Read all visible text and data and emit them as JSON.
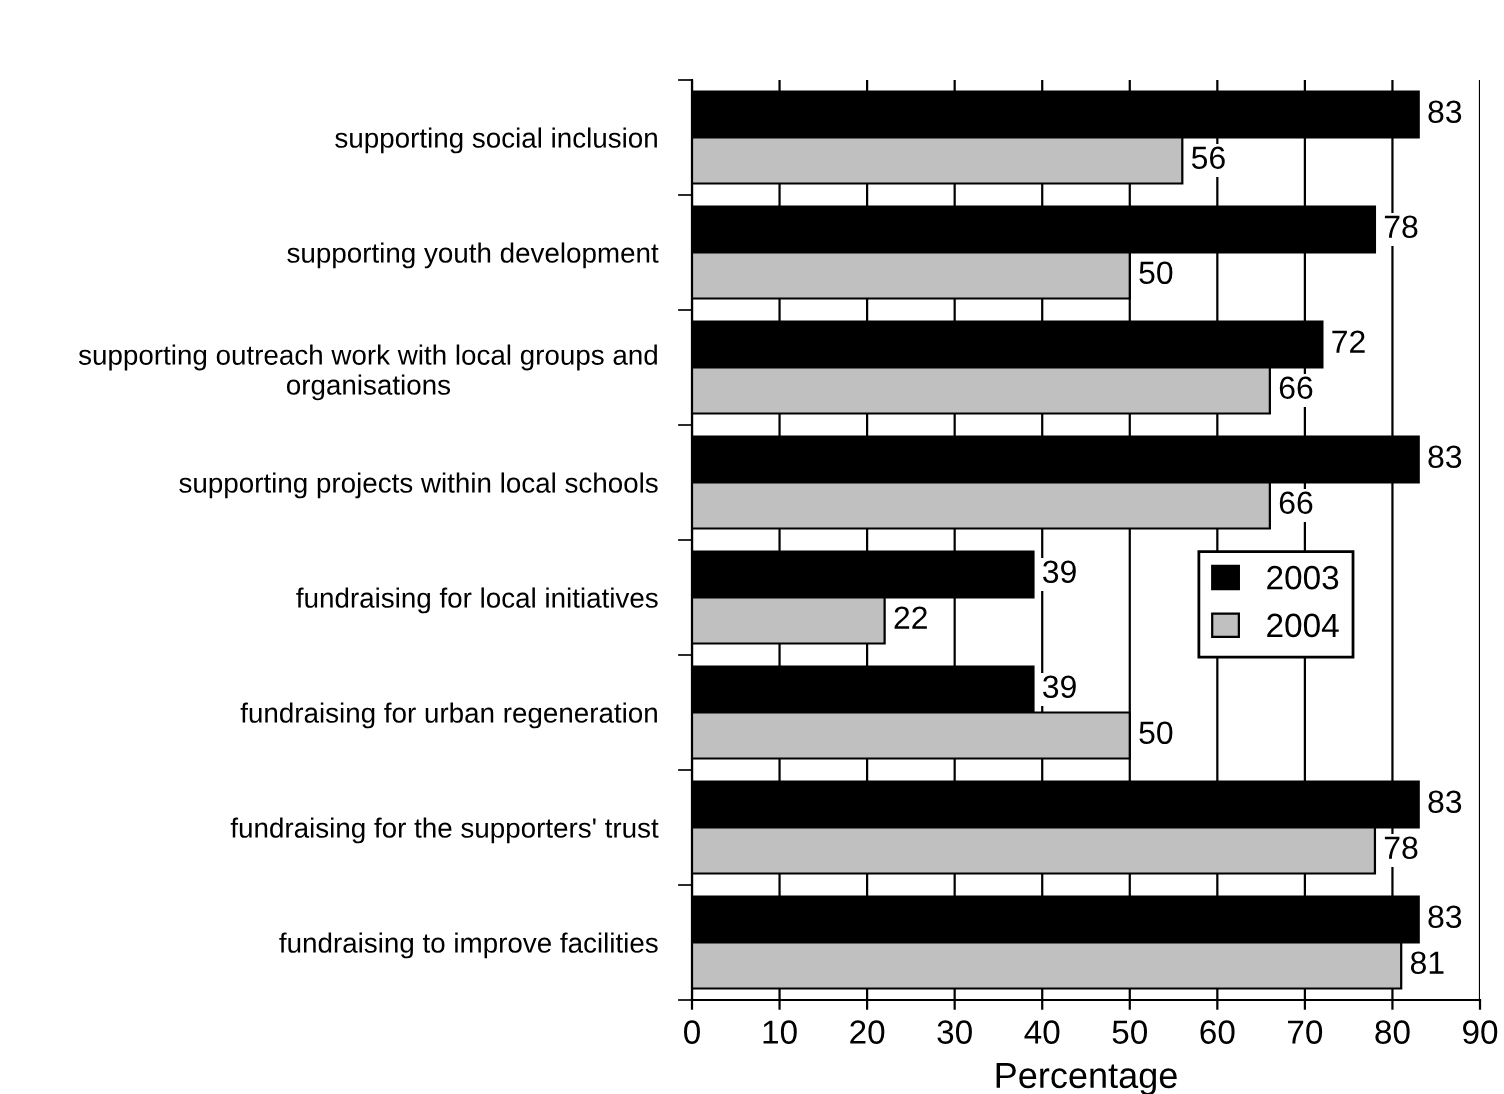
{
  "chart_data": {
    "type": "bar",
    "orientation": "horizontal",
    "xlabel": "Percentage",
    "categories": [
      "supporting social inclusion",
      "supporting youth development",
      "supporting outreach work with local groups and\norganisations",
      "supporting projects within local schools",
      "fundraising for local initiatives",
      "fundraising for urban regeneration",
      "fundraising for the supporters' trust",
      "fundraising to improve facilities"
    ],
    "series": [
      {
        "name": "2003",
        "color": "#000000",
        "values": [
          83,
          78,
          72,
          83,
          39,
          39,
          83,
          83
        ]
      },
      {
        "name": "2004",
        "color": "#c0c0c0",
        "values": [
          56,
          50,
          66,
          66,
          22,
          50,
          78,
          81
        ]
      }
    ],
    "xlim": [
      0,
      90
    ],
    "xticks": [
      0,
      10,
      20,
      30,
      40,
      50,
      60,
      70,
      80,
      90
    ],
    "grid": "x",
    "legend": "center right",
    "data_labels": true
  }
}
